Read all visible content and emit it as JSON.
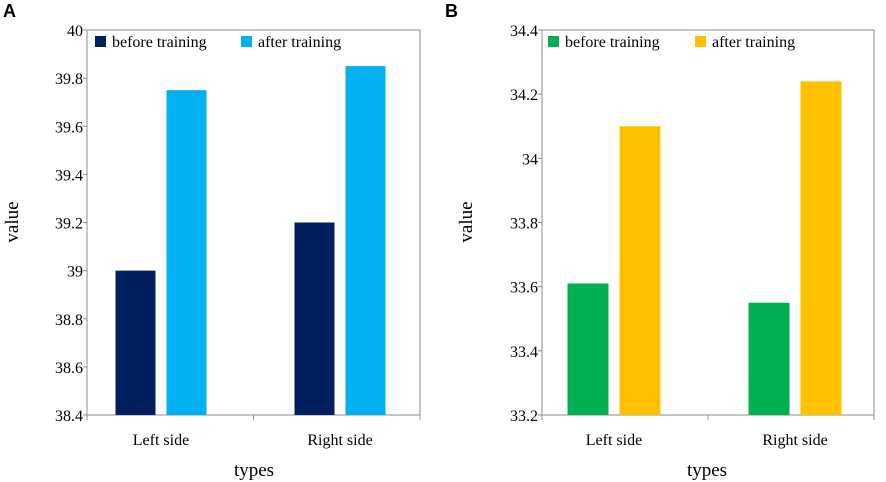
{
  "chart_data": [
    {
      "panel_label": "A",
      "type": "bar",
      "categories": [
        "Left side",
        "Right side"
      ],
      "series": [
        {
          "name": "before training",
          "color": "#001f5f",
          "values": [
            39.0,
            39.2
          ]
        },
        {
          "name": "after training",
          "color": "#00b0f0",
          "values": [
            39.75,
            39.85
          ]
        }
      ],
      "xlabel": "types",
      "ylabel": "value",
      "ylim": [
        38.4,
        40
      ],
      "yticks": [
        38.4,
        38.6,
        38.8,
        39,
        39.2,
        39.4,
        39.6,
        39.8,
        40
      ],
      "ytick_labels": [
        "38.4",
        "38.6",
        "38.8",
        "39",
        "39.2",
        "39.4",
        "39.6",
        "39.8",
        "40"
      ],
      "legend_position": "top"
    },
    {
      "panel_label": "B",
      "type": "bar",
      "categories": [
        "Left side",
        "Right side"
      ],
      "series": [
        {
          "name": "before training",
          "color": "#00b050",
          "values": [
            33.61,
            33.55
          ]
        },
        {
          "name": "after training",
          "color": "#ffc000",
          "values": [
            34.1,
            34.24
          ]
        }
      ],
      "xlabel": "types",
      "ylabel": "value",
      "ylim": [
        33.2,
        34.4
      ],
      "yticks": [
        33.2,
        33.4,
        33.6,
        33.8,
        34,
        34.2,
        34.4
      ],
      "ytick_labels": [
        "33.2",
        "33.4",
        "33.6",
        "33.8",
        "34",
        "34.2",
        "34.4"
      ],
      "legend_position": "top"
    }
  ]
}
